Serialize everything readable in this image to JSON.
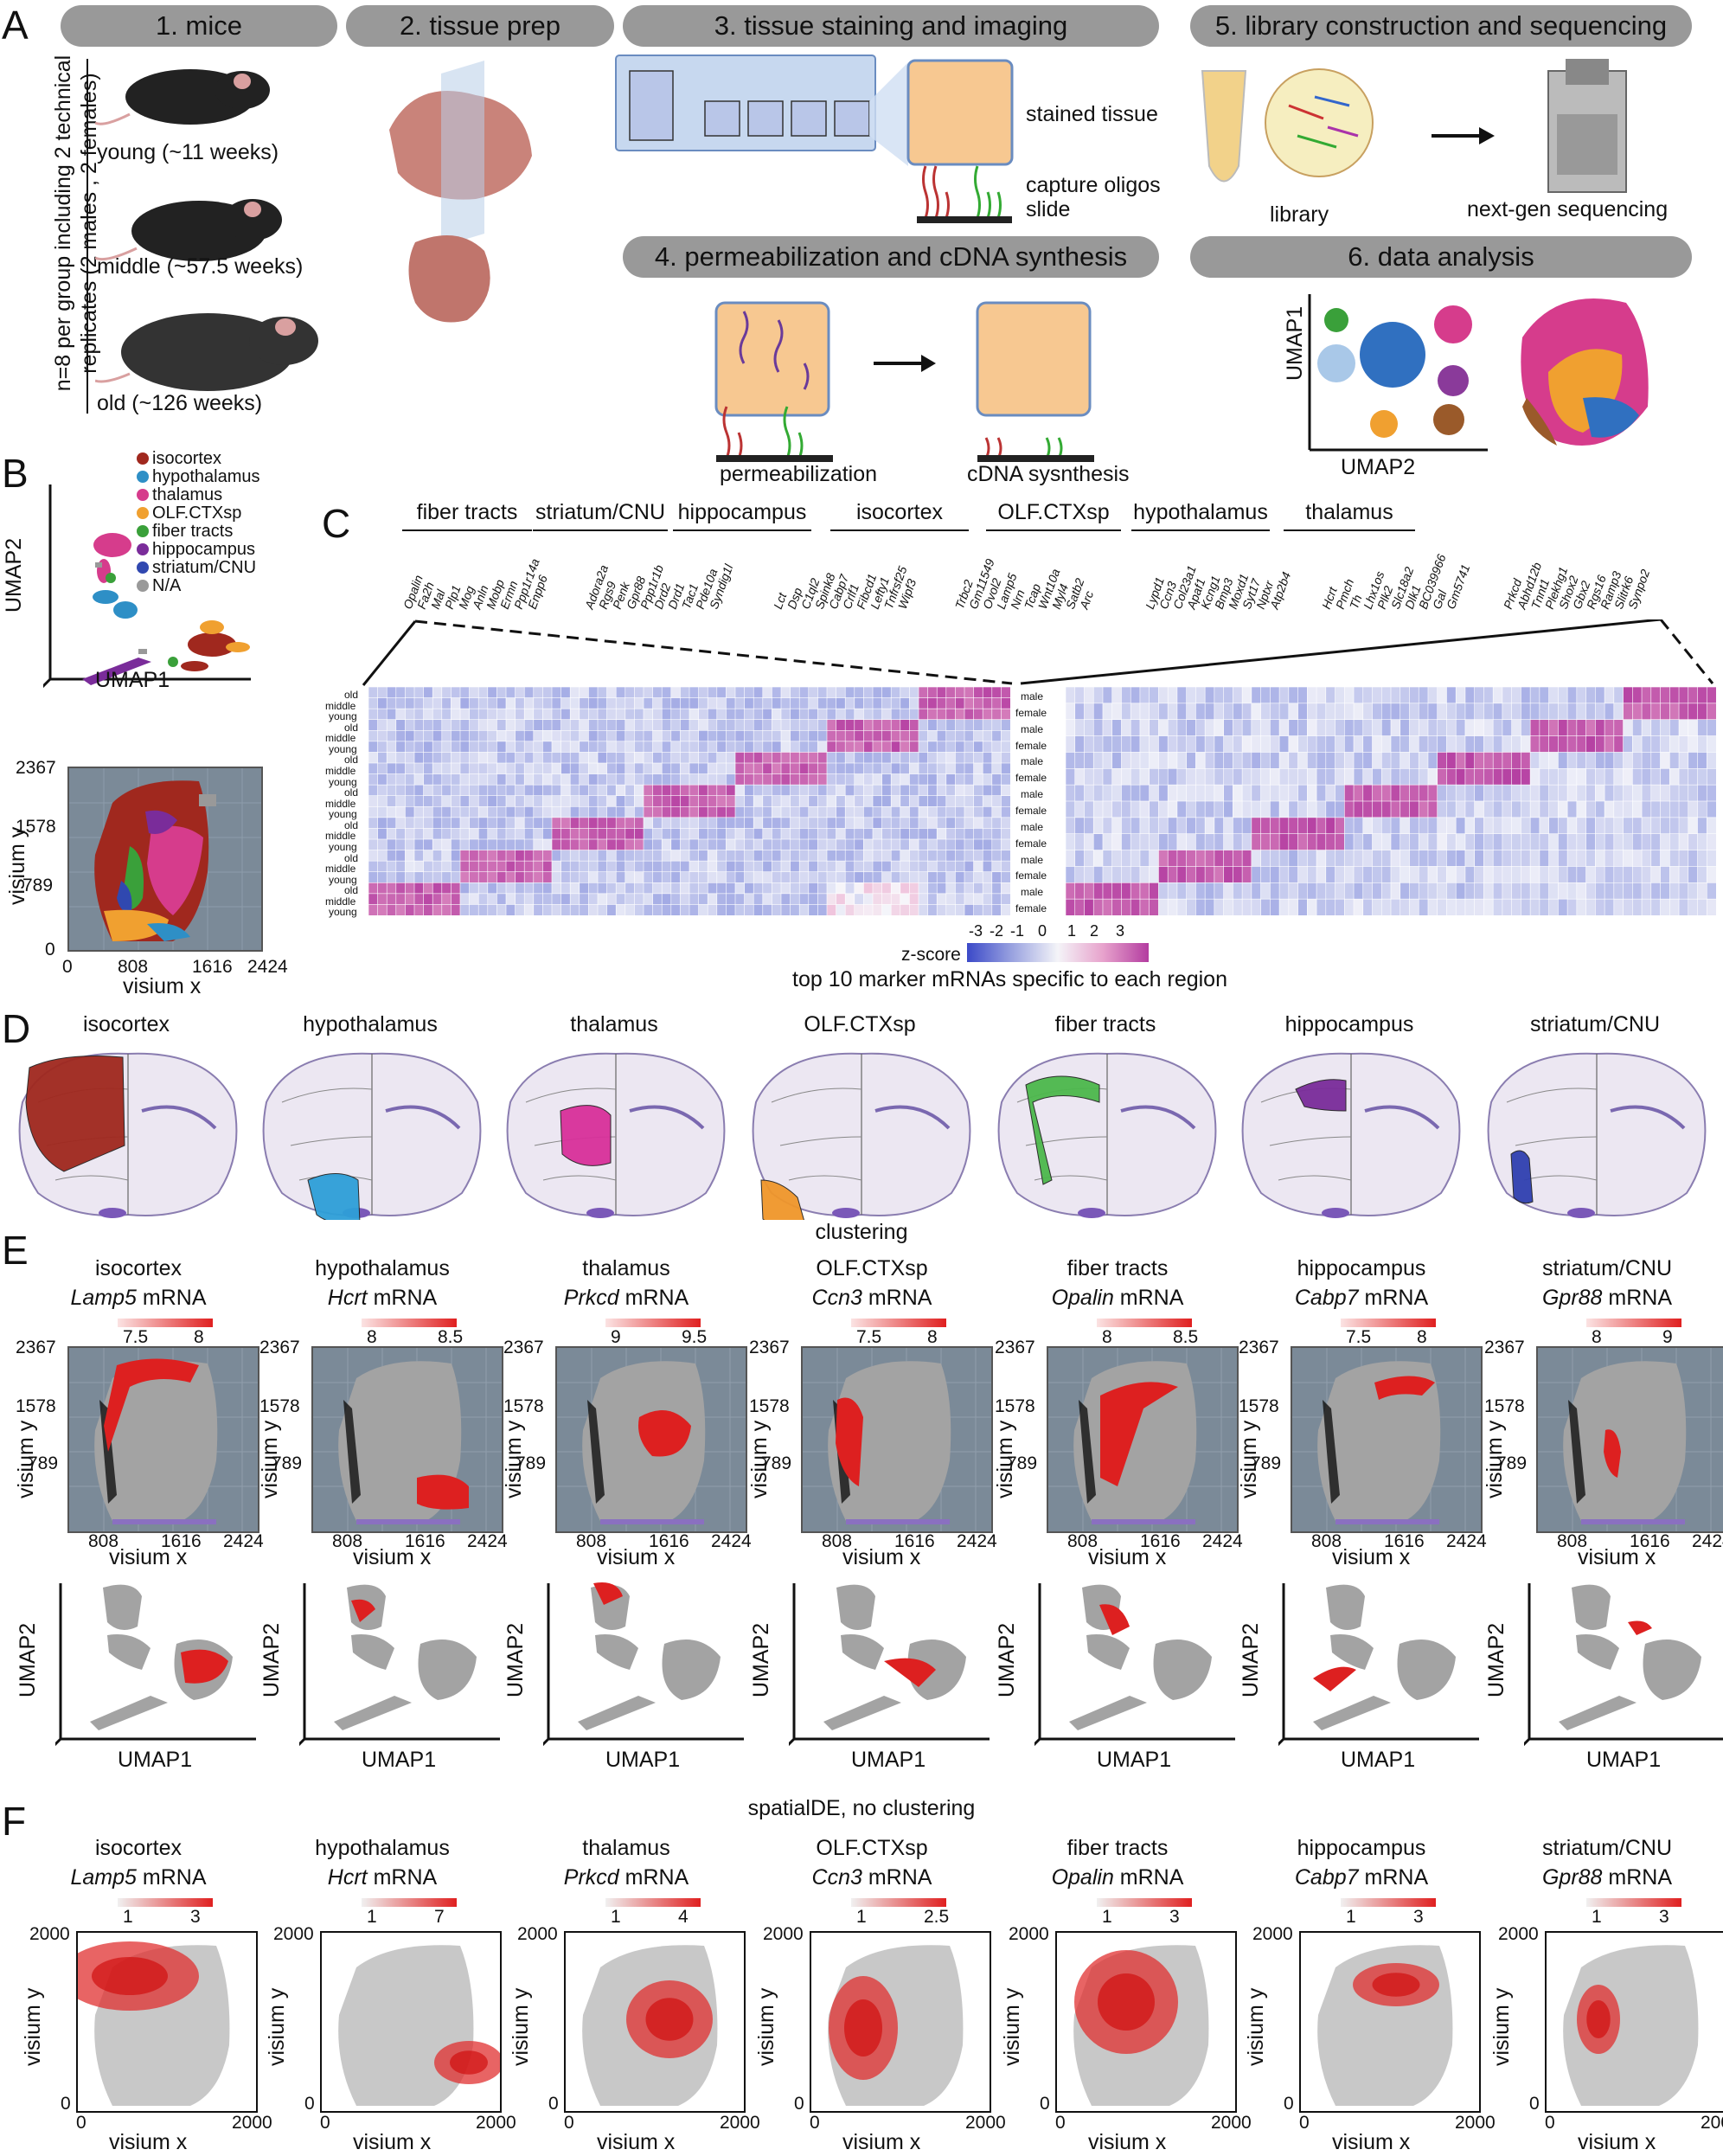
{
  "panels": {
    "a": "A",
    "b": "B",
    "c": "C",
    "d": "D",
    "e": "E",
    "f": "F"
  },
  "a": {
    "steps": [
      "1. mice",
      "2. tissue prep",
      "3. tissue staining and imaging",
      "4. permeabilization and cDNA synthesis",
      "5. library construction and sequencing",
      "6. data analysis"
    ],
    "n_label": "n=8 per group including 2 technical replicates (2 males , 2 females)",
    "mice": [
      "young (~11 weeks)",
      "middle (~57.5 weeks)",
      "old (~126 weeks)"
    ],
    "stained": "stained tissue",
    "capture": "capture oligos",
    "slide": "slide",
    "perm": "permeabilization",
    "cdna": "cDNA sysnthesis",
    "library": "library",
    "ngs": "next-gen sequencing",
    "umap1": "UMAP1",
    "umap2": "UMAP2"
  },
  "b": {
    "legend": [
      "isocortex",
      "hypothalamus",
      "thalamus",
      "OLF.CTXsp",
      "fiber tracts",
      "hippocampus",
      "striatum/CNU",
      "N/A"
    ],
    "legend_colors": [
      "#a0281e",
      "#2e8fc6",
      "#d63c8c",
      "#f0a030",
      "#3aa03a",
      "#7a2c9a",
      "#3048b0",
      "#999999"
    ],
    "umap2": "UMAP2",
    "umap1": "UMAP1",
    "yticks": [
      "2367",
      "1578",
      "789",
      "0"
    ],
    "xticks": [
      "0",
      "808",
      "1616",
      "2424"
    ],
    "ylabel": "visium y",
    "xlabel": "visium x"
  },
  "c": {
    "regions": [
      "fiber tracts",
      "striatum/CNU",
      "hippocampus",
      "isocortex",
      "OLF.CTXsp",
      "hypothalamus",
      "thalamus"
    ],
    "genes": [
      [
        "Opalin",
        "Fa2h",
        "Mal",
        "Plp1",
        "Mog",
        "Anln",
        "Mobp",
        "Ermn",
        "Ppp1r14a",
        "Enpp6"
      ],
      [
        "Adora2a",
        "Rgs9",
        "Penk",
        "Gpr88",
        "Ppp1r1b",
        "Drd2",
        "Drd1",
        "Tac1",
        "Pde10a",
        "Syndig1l"
      ],
      [
        "Lct",
        "Dsp",
        "C1ql2",
        "Spink8",
        "Cabp7",
        "Crlf1",
        "Fibcd1",
        "Lefty1",
        "Tnfrsf25",
        "Wipf3"
      ],
      [
        "Trbc2",
        "Gm11549",
        "Ovol2",
        "Lamp5",
        "Nrn",
        "Tcap",
        "Wnt10a",
        "Myl4",
        "Satb2",
        "Arc"
      ],
      [
        "Lypd1",
        "Ccn3",
        "Col23a1",
        "Apaf1",
        "Kcng1",
        "Bmp3",
        "Moxd1",
        "Syt17",
        "Nptxr",
        "Atp2b4"
      ],
      [
        "Hcrt",
        "Pmch",
        "Th",
        "Lhx1os",
        "Plk2",
        "Slc18a2",
        "Dlk1",
        "BC039966",
        "Gal",
        "Gm5741"
      ],
      [
        "Prkcd",
        "Abhd12b",
        "Tnnt1",
        "Plekhg1",
        "Shox2",
        "Gbx2",
        "Rgs16",
        "Ramp3",
        "Slitrk6",
        "Synpo2"
      ]
    ],
    "age_labels": [
      "old",
      "middle",
      "young",
      "old",
      "middle",
      "young",
      "old",
      "middle",
      "young",
      "old",
      "middle",
      "young",
      "old",
      "middle",
      "young",
      "old",
      "middle",
      "young",
      "old",
      "middle",
      "young"
    ],
    "sex_labels": [
      "male",
      "female",
      "male",
      "female",
      "male",
      "female",
      "male",
      "female",
      "male",
      "female",
      "male",
      "female",
      "male",
      "female"
    ],
    "zscore_label": "z-score",
    "zticks": [
      "-3",
      "-2",
      "-1",
      "0",
      "1",
      "2",
      "3"
    ],
    "caption": "top 10 marker mRNAs specific to each region"
  },
  "d": {
    "regions": [
      "isocortex",
      "hypothalamus",
      "thalamus",
      "OLF.CTXsp",
      "fiber tracts",
      "hippocampus",
      "striatum/CNU"
    ],
    "colors": [
      "#a0281e",
      "#2e9fd8",
      "#d8309a",
      "#f0962a",
      "#4cb84c",
      "#7a2c9a",
      "#3040b0"
    ]
  },
  "e": {
    "title": "clustering",
    "regions": [
      "isocortex",
      "hypothalamus",
      "thalamus",
      "OLF.CTXsp",
      "fiber tracts",
      "hippocampus",
      "striatum/CNU"
    ],
    "genes": [
      "Lamp5",
      "Hcrt",
      "Prkcd",
      "Ccn3",
      "Opalin",
      "Cabp7",
      "Gpr88"
    ],
    "mrna": "mRNA",
    "scale_lo": [
      "7.5",
      "8",
      "9",
      "7.5",
      "8",
      "7.5",
      "8"
    ],
    "scale_hi": [
      "8",
      "8.5",
      "9.5",
      "8",
      "8.5",
      "8",
      "9"
    ],
    "yticks": [
      "2367",
      "1578",
      "789"
    ],
    "xticks": [
      "808",
      "1616",
      "2424"
    ],
    "ylabel": "visium y",
    "xlabel": "visium x",
    "umap2": "UMAP2",
    "umap1": "UMAP1"
  },
  "f": {
    "title": "spatialDE, no clustering",
    "regions": [
      "isocortex",
      "hypothalamus",
      "thalamus",
      "OLF.CTXsp",
      "fiber tracts",
      "hippocampus",
      "striatum/CNU"
    ],
    "genes": [
      "Lamp5",
      "Hcrt",
      "Prkcd",
      "Ccn3",
      "Opalin",
      "Cabp7",
      "Gpr88"
    ],
    "mrna": "mRNA",
    "scale_lo": [
      "1",
      "1",
      "1",
      "1",
      "1",
      "1",
      "1"
    ],
    "scale_hi": [
      "3",
      "7",
      "4",
      "2.5",
      "3",
      "3",
      "3"
    ],
    "ytop": "2000",
    "yzero": "0",
    "xzero": "0",
    "xright": "2000",
    "ylabel": "visium y",
    "xlabel": "visium x"
  }
}
